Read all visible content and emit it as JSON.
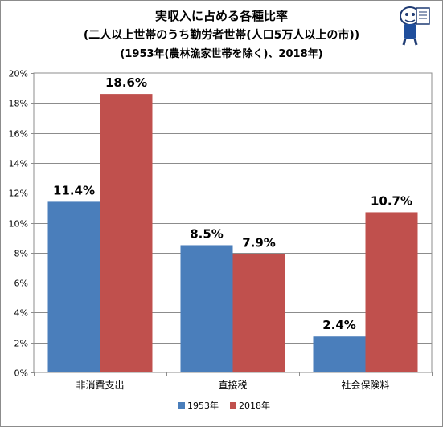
{
  "title": "実収入に占める各種比率",
  "subtitle": "(二人以上世帯のうち勤労者世帯(人口5万人以上の市))",
  "note": "(1953年(農林漁家世帯を除く)、2018年)",
  "colors": {
    "s1953": "#4a7ebb",
    "s2018": "#c0504d"
  },
  "chart_data": {
    "type": "bar",
    "categories": [
      "非消費支出",
      "直接税",
      "社会保険料"
    ],
    "series": [
      {
        "name": "1953年",
        "values": [
          11.4,
          8.5,
          2.4
        ],
        "labels": [
          "11.4%",
          "8.5%",
          "2.4%"
        ]
      },
      {
        "name": "2018年",
        "values": [
          18.6,
          7.9,
          10.7
        ],
        "labels": [
          "18.6%",
          "7.9%",
          "10.7%"
        ]
      }
    ],
    "ylim": [
      0,
      20
    ],
    "yticks": [
      "0%",
      "2%",
      "4%",
      "6%",
      "8%",
      "10%",
      "12%",
      "14%",
      "16%",
      "18%",
      "20%"
    ],
    "grid": true,
    "legend": "bottom"
  }
}
